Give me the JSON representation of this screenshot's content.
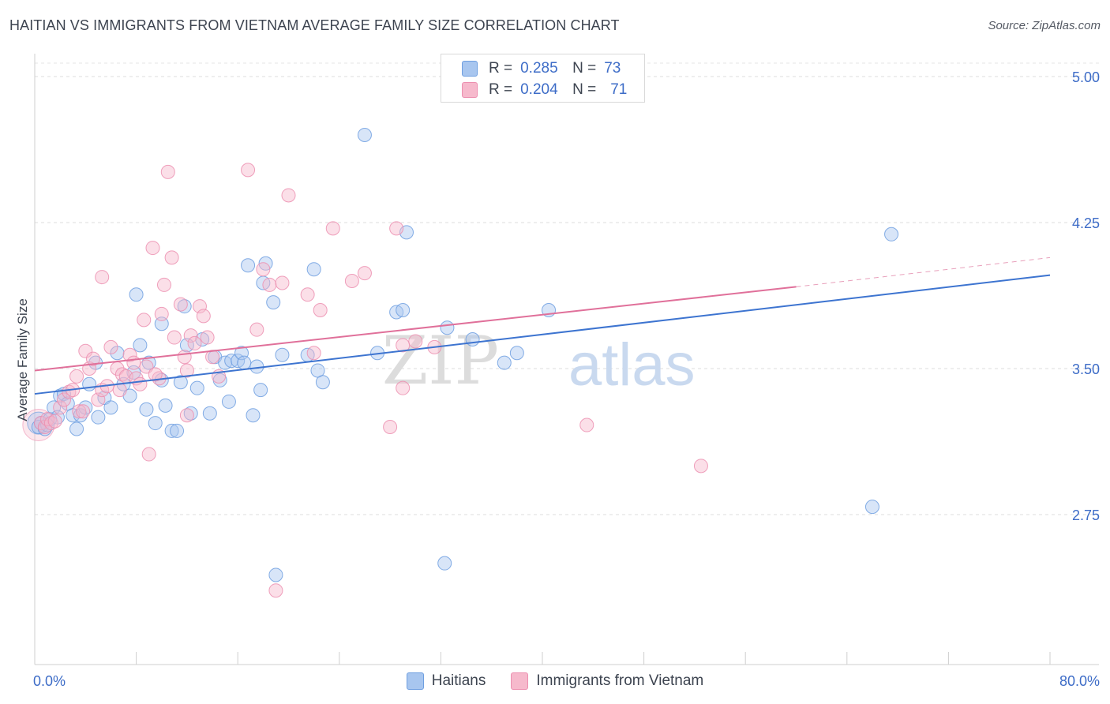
{
  "title": "HAITIAN VS IMMIGRANTS FROM VIETNAM AVERAGE FAMILY SIZE CORRELATION CHART",
  "source": "Source: ZipAtlas.com",
  "watermark": {
    "zip": "ZIP",
    "atlas": "atlas"
  },
  "stats_box": {
    "rows": [
      {
        "r_label": "R =",
        "r_value": "0.285",
        "n_label": "N =",
        "n_value": "73",
        "color": "#a8c6ef"
      },
      {
        "r_label": "R =",
        "r_value": "0.204",
        "n_label": "N =",
        "n_value": "71",
        "color": "#f6b9cc"
      }
    ]
  },
  "legend": [
    {
      "label": "Haitians",
      "color": "#a8c6ef"
    },
    {
      "label": "Immigrants from Vietnam",
      "color": "#f6b9cc"
    }
  ],
  "chart_data": {
    "type": "scatter",
    "title": "HAITIAN VS IMMIGRANTS FROM VIETNAM AVERAGE FAMILY SIZE CORRELATION CHART",
    "xlabel": "",
    "ylabel": "Average Family Size",
    "xlim": [
      0,
      80
    ],
    "ylim": [
      2.2,
      5.2
    ],
    "x_tick_labels": [
      "0.0%",
      "80.0%"
    ],
    "y_ticks": [
      2.75,
      3.5,
      4.25,
      5.0
    ],
    "y_tick_labels": [
      "2.75",
      "3.50",
      "4.25",
      "5.00"
    ],
    "grid": "horizontal dashed",
    "legend_position": "bottom",
    "series": [
      {
        "name": "Haitians",
        "color": "#a8c6ef",
        "stroke": "#6f9fe0",
        "trend": {
          "x": [
            0,
            80
          ],
          "y": [
            3.37,
            3.98
          ]
        },
        "points": [
          [
            0.3,
            3.2
          ],
          [
            0.5,
            3.22
          ],
          [
            0.8,
            3.19
          ],
          [
            1.0,
            3.21
          ],
          [
            1.2,
            3.24
          ],
          [
            1.5,
            3.3
          ],
          [
            1.8,
            3.25
          ],
          [
            2.0,
            3.36
          ],
          [
            2.3,
            3.37
          ],
          [
            2.6,
            3.32
          ],
          [
            3.0,
            3.26
          ],
          [
            3.3,
            3.19
          ],
          [
            3.6,
            3.26
          ],
          [
            4.0,
            3.3
          ],
          [
            4.3,
            3.42
          ],
          [
            4.8,
            3.53
          ],
          [
            5.0,
            3.25
          ],
          [
            5.5,
            3.35
          ],
          [
            6.0,
            3.3
          ],
          [
            6.5,
            3.58
          ],
          [
            7.0,
            3.42
          ],
          [
            7.5,
            3.36
          ],
          [
            7.8,
            3.48
          ],
          [
            8.0,
            3.88
          ],
          [
            8.3,
            3.62
          ],
          [
            8.8,
            3.29
          ],
          [
            9.0,
            3.53
          ],
          [
            9.5,
            3.22
          ],
          [
            10.0,
            3.44
          ],
          [
            10.0,
            3.73
          ],
          [
            10.3,
            3.31
          ],
          [
            10.8,
            3.18
          ],
          [
            11.2,
            3.18
          ],
          [
            11.5,
            3.43
          ],
          [
            11.8,
            3.82
          ],
          [
            12.0,
            3.62
          ],
          [
            12.3,
            3.27
          ],
          [
            12.8,
            3.4
          ],
          [
            13.2,
            3.65
          ],
          [
            13.8,
            3.27
          ],
          [
            14.2,
            3.56
          ],
          [
            14.6,
            3.44
          ],
          [
            15.0,
            3.53
          ],
          [
            15.3,
            3.33
          ],
          [
            15.5,
            3.54
          ],
          [
            16.0,
            3.54
          ],
          [
            16.3,
            3.58
          ],
          [
            16.5,
            3.53
          ],
          [
            16.8,
            4.03
          ],
          [
            17.2,
            3.26
          ],
          [
            17.5,
            3.51
          ],
          [
            17.8,
            3.39
          ],
          [
            18.0,
            3.94
          ],
          [
            18.2,
            4.04
          ],
          [
            18.8,
            3.84
          ],
          [
            19.0,
            2.44
          ],
          [
            19.5,
            3.57
          ],
          [
            21.5,
            3.57
          ],
          [
            22.0,
            4.01
          ],
          [
            22.3,
            3.49
          ],
          [
            22.7,
            3.43
          ],
          [
            26.0,
            4.7
          ],
          [
            27.0,
            3.58
          ],
          [
            28.5,
            3.79
          ],
          [
            29.0,
            3.8
          ],
          [
            29.3,
            4.2
          ],
          [
            32.3,
            2.5
          ],
          [
            32.5,
            3.71
          ],
          [
            34.5,
            3.65
          ],
          [
            37.0,
            3.53
          ],
          [
            38.0,
            3.58
          ],
          [
            40.5,
            3.8
          ],
          [
            66.0,
            2.79
          ],
          [
            67.5,
            4.19
          ]
        ]
      },
      {
        "name": "Immigrants from Vietnam",
        "color": "#f6b9cc",
        "stroke": "#ec8fb0",
        "trend": {
          "x": [
            0,
            60
          ],
          "y": [
            3.49,
            3.92
          ]
        },
        "trend_dashed": {
          "x": [
            60,
            80
          ],
          "y": [
            3.92,
            4.07
          ]
        },
        "points": [
          [
            0.5,
            3.22
          ],
          [
            0.8,
            3.2
          ],
          [
            1.0,
            3.24
          ],
          [
            1.3,
            3.22
          ],
          [
            1.6,
            3.23
          ],
          [
            2.0,
            3.3
          ],
          [
            2.3,
            3.34
          ],
          [
            2.7,
            3.38
          ],
          [
            3.0,
            3.39
          ],
          [
            3.3,
            3.46
          ],
          [
            3.5,
            3.28
          ],
          [
            3.8,
            3.28
          ],
          [
            4.0,
            3.59
          ],
          [
            4.3,
            3.5
          ],
          [
            4.6,
            3.55
          ],
          [
            5.0,
            3.34
          ],
          [
            5.3,
            3.39
          ],
          [
            5.3,
            3.97
          ],
          [
            5.7,
            3.41
          ],
          [
            6.0,
            3.61
          ],
          [
            6.5,
            3.5
          ],
          [
            6.7,
            3.39
          ],
          [
            6.9,
            3.47
          ],
          [
            7.2,
            3.46
          ],
          [
            7.5,
            3.57
          ],
          [
            7.8,
            3.53
          ],
          [
            8.0,
            3.45
          ],
          [
            8.3,
            3.42
          ],
          [
            8.6,
            3.75
          ],
          [
            8.8,
            3.51
          ],
          [
            9.0,
            3.06
          ],
          [
            9.3,
            4.12
          ],
          [
            9.8,
            3.45
          ],
          [
            10.0,
            3.78
          ],
          [
            10.2,
            3.93
          ],
          [
            10.5,
            4.51
          ],
          [
            10.8,
            4.07
          ],
          [
            11.0,
            3.66
          ],
          [
            11.5,
            3.83
          ],
          [
            11.8,
            3.56
          ],
          [
            12.0,
            3.49
          ],
          [
            12.3,
            3.67
          ],
          [
            12.6,
            3.63
          ],
          [
            13.0,
            3.82
          ],
          [
            13.3,
            3.77
          ],
          [
            13.6,
            3.66
          ],
          [
            14.0,
            3.56
          ],
          [
            14.5,
            3.46
          ],
          [
            16.8,
            4.52
          ],
          [
            17.5,
            3.7
          ],
          [
            18.0,
            4.01
          ],
          [
            18.5,
            3.93
          ],
          [
            19.0,
            2.36
          ],
          [
            19.5,
            3.94
          ],
          [
            20.0,
            4.39
          ],
          [
            21.5,
            3.88
          ],
          [
            22.0,
            3.58
          ],
          [
            22.5,
            3.8
          ],
          [
            23.5,
            4.22
          ],
          [
            25.0,
            3.95
          ],
          [
            26.0,
            3.99
          ],
          [
            28.0,
            3.2
          ],
          [
            28.5,
            4.22
          ],
          [
            29.0,
            3.62
          ],
          [
            30.0,
            3.64
          ],
          [
            31.5,
            3.61
          ],
          [
            43.5,
            3.21
          ],
          [
            52.5,
            3.0
          ],
          [
            29.0,
            3.4
          ],
          [
            12.0,
            3.26
          ],
          [
            9.5,
            3.47
          ]
        ]
      }
    ]
  }
}
